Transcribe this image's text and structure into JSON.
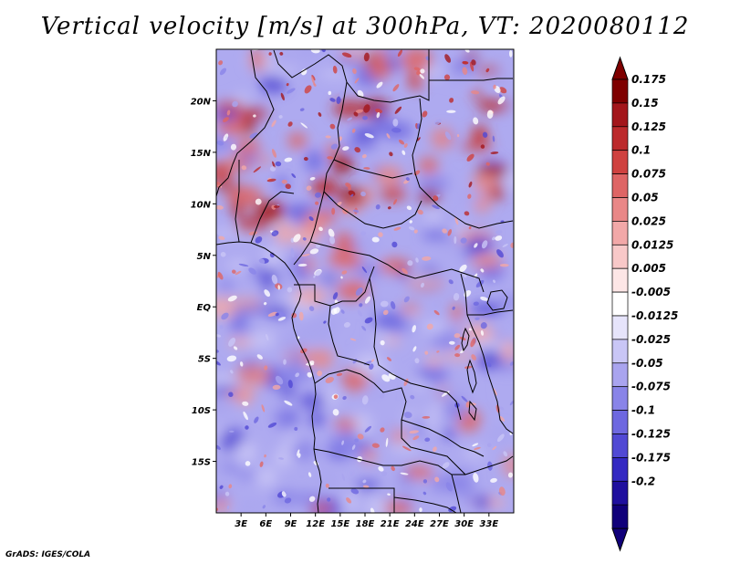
{
  "title": "Vertical velocity [m/s] at 300hPa, VT: 2020080112",
  "footer": "GrADS: IGES/COLA",
  "map": {
    "lon_range": [
      0,
      36
    ],
    "lat_range": [
      -20,
      25
    ],
    "x_ticks": [
      {
        "value": 3,
        "label": "3E"
      },
      {
        "value": 6,
        "label": "6E"
      },
      {
        "value": 9,
        "label": "9E"
      },
      {
        "value": 12,
        "label": "12E"
      },
      {
        "value": 15,
        "label": "15E"
      },
      {
        "value": 18,
        "label": "18E"
      },
      {
        "value": 21,
        "label": "21E"
      },
      {
        "value": 24,
        "label": "24E"
      },
      {
        "value": 27,
        "label": "27E"
      },
      {
        "value": 30,
        "label": "30E"
      },
      {
        "value": 33,
        "label": "33E"
      }
    ],
    "y_ticks": [
      {
        "value": 20,
        "label": "20N"
      },
      {
        "value": 15,
        "label": "15N"
      },
      {
        "value": 10,
        "label": "10N"
      },
      {
        "value": 5,
        "label": "5N"
      },
      {
        "value": 0,
        "label": "EQ"
      },
      {
        "value": -5,
        "label": "5S"
      },
      {
        "value": -10,
        "label": "10S"
      },
      {
        "value": -15,
        "label": "15S"
      }
    ]
  },
  "colorbar": {
    "labels": [
      "0.175",
      "0.15",
      "0.125",
      "0.1",
      "0.075",
      "0.05",
      "0.025",
      "0.0125",
      "0.005",
      "-0.005",
      "-0.0125",
      "-0.025",
      "-0.05",
      "-0.075",
      "-0.1",
      "-0.125",
      "-0.175",
      "-0.2"
    ],
    "colors": [
      "#7f0000",
      "#a3161b",
      "#bc2a2c",
      "#cf4240",
      "#de6565",
      "#e98787",
      "#f2a8a8",
      "#f8c8c8",
      "#fde6e6",
      "#ffffff",
      "#e6e4fb",
      "#c9c6f6",
      "#a9a4ef",
      "#8984e8",
      "#6e68e0",
      "#5149d4",
      "#3429c2",
      "#1f0f9e",
      "#10007a"
    ],
    "tip_top_color": "#7f0000",
    "tip_bottom_color": "#10007a"
  },
  "chart_data": {
    "type": "heatmap",
    "title": "Vertical velocity [m/s] at 300hPa, VT: 2020080112",
    "variable": "Vertical velocity",
    "units": "m/s",
    "level": "300hPa",
    "valid_time": "2020080112",
    "x_range_lon": [
      0,
      36
    ],
    "y_range_lat": [
      -20,
      25
    ],
    "contour_levels": [
      -0.2,
      -0.175,
      -0.125,
      -0.1,
      -0.075,
      -0.05,
      -0.025,
      -0.0125,
      -0.005,
      0.005,
      0.0125,
      0.025,
      0.05,
      0.075,
      0.1,
      0.125,
      0.15,
      0.175
    ]
  }
}
